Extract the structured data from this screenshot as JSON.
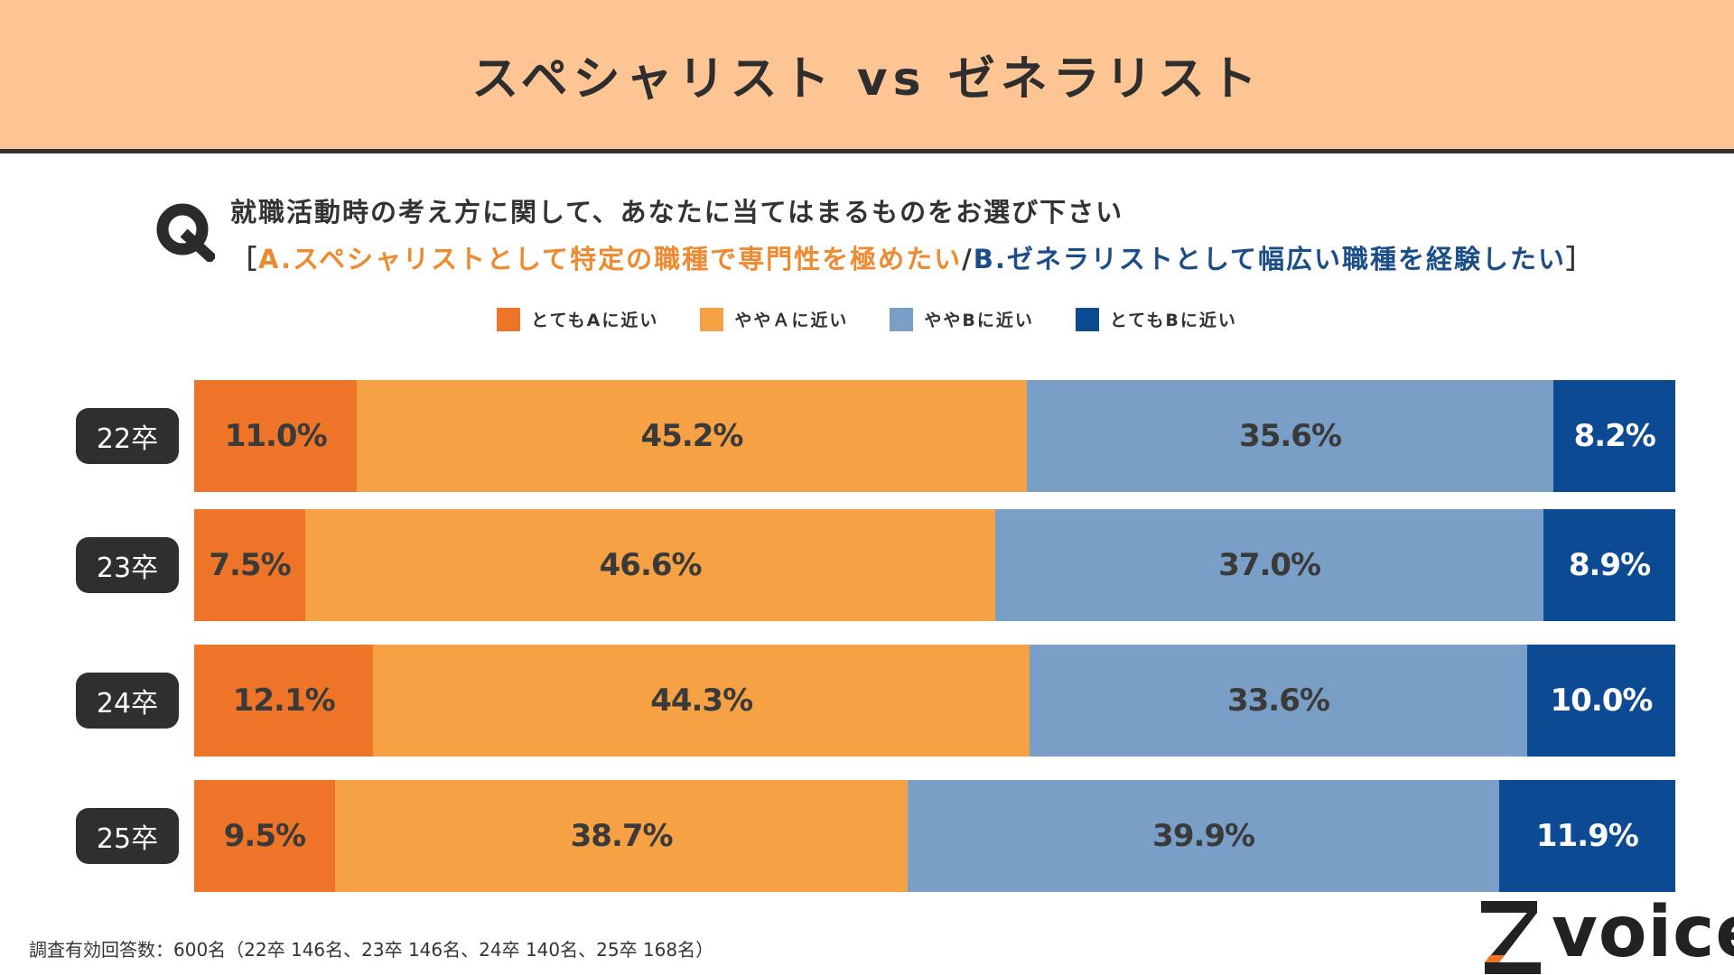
{
  "header": {
    "title": "スペシャリスト vs ゼネラリスト"
  },
  "question": {
    "line1": "就職活動時の考え方に関して、あなたに当てはまるものをお選び下さい",
    "bracket_open": "［",
    "option_a": "A.スペシャリストとして特定の職種で専門性を極めたい",
    "separator": "/",
    "option_b": "B.ゼネラリストとして幅広い職種を経験したい",
    "bracket_close": "］"
  },
  "colors": {
    "very_a": "#ee7427",
    "somewhat_a": "#f6a143",
    "somewhat_b": "#799fc7",
    "very_b": "#0d4a94",
    "label_dark": "#3a3a3a",
    "label_light": "#ffffff"
  },
  "chart_data": {
    "type": "bar",
    "orientation": "horizontal",
    "stacked": "percent",
    "categories": [
      "22卒",
      "23卒",
      "24卒",
      "25卒"
    ],
    "series": [
      {
        "name": "とてもAに近い",
        "values": [
          11.0,
          7.5,
          12.1,
          9.5
        ]
      },
      {
        "name": "ややＡに近い",
        "values": [
          45.2,
          46.6,
          44.3,
          38.7
        ]
      },
      {
        "name": "ややBに近い",
        "values": [
          35.6,
          37.0,
          33.6,
          39.9
        ]
      },
      {
        "name": "とてもBに近い",
        "values": [
          8.2,
          8.9,
          10.0,
          11.9
        ]
      }
    ],
    "data_labels": [
      [
        "11.0%",
        "45.2%",
        "35.6%",
        "8.2%"
      ],
      [
        "7.5%",
        "46.6%",
        "37.0%",
        "8.9%"
      ],
      [
        "12.1%",
        "44.3%",
        "33.6%",
        "10.0%"
      ],
      [
        "9.5%",
        "38.7%",
        "39.9%",
        "11.9%"
      ]
    ],
    "legend_position": "top-center",
    "unit": "%"
  },
  "footnote": "調査有効回答数：600名（22卒 146名、23卒 146名、24卒 140名、25卒 168名）",
  "logo": {
    "text": "voice",
    "mark": "Z"
  }
}
